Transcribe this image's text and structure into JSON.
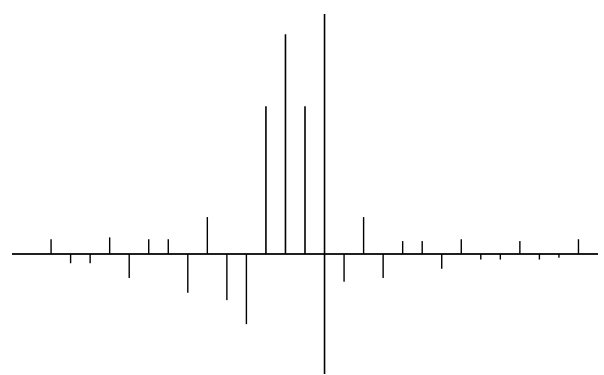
{
  "chart_data": {
    "type": "bar",
    "title": "",
    "xlabel": "",
    "ylabel": "",
    "grid": false,
    "legend": "none",
    "xlim": [
      -16,
      14
    ],
    "ylim": [
      -6.5,
      13
    ],
    "x": [
      -14,
      -13,
      -12,
      -11,
      -10,
      -9,
      -8,
      -7,
      -6,
      -5,
      -4,
      -3,
      -2,
      -1,
      0,
      1,
      2,
      3,
      4,
      5,
      6,
      7,
      8,
      9,
      10,
      11,
      12,
      13
    ],
    "values": [
      0.8,
      -0.5,
      -0.5,
      0.9,
      -1.3,
      0.8,
      0.8,
      -2.1,
      2.0,
      -2.5,
      -3.8,
      8.0,
      11.9,
      8.0,
      -2.5,
      -1.5,
      2.0,
      -1.3,
      0.7,
      0.7,
      -0.8,
      0.8,
      -0.3,
      -0.3,
      0.7,
      -0.3,
      -0.2,
      0.8
    ],
    "colors": {
      "axis": "#000000",
      "bar": "#000000",
      "background": "#ffffff"
    }
  }
}
